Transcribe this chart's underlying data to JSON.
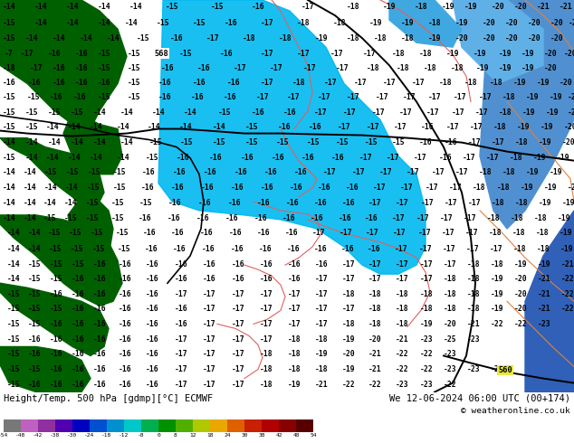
{
  "bottom_label": "Height/Temp. 500 hPa [gdmp][°C] ECMWF",
  "bottom_right1": "We 12-06-2024 06:00 UTC (00+174)",
  "bottom_right2": "© weatheronline.co.uk",
  "bg_color": "#00d8d8",
  "sea_light": "#00c0ff",
  "sea_medium": "#0080c0",
  "sea_dark": "#0040a0",
  "land_dark": "#006000",
  "land_medium": "#008000",
  "fig_width": 6.34,
  "fig_height": 4.9,
  "dpi": 100,
  "colorbar_colors": [
    "#787878",
    "#c060c0",
    "#9030a0",
    "#5000b0",
    "#0000c0",
    "#0050d0",
    "#0090d0",
    "#00c8c8",
    "#00b050",
    "#009000",
    "#50b000",
    "#b0c800",
    "#e8a800",
    "#e06000",
    "#c82000",
    "#b00000",
    "#880000",
    "#580000"
  ],
  "colorbar_ticks": [
    "-54",
    "-48",
    "-42",
    "-38",
    "-30",
    "-24",
    "-18",
    "-12",
    "-8",
    "0",
    "8",
    "12",
    "18",
    "24",
    "30",
    "38",
    "42",
    "48",
    "54"
  ]
}
